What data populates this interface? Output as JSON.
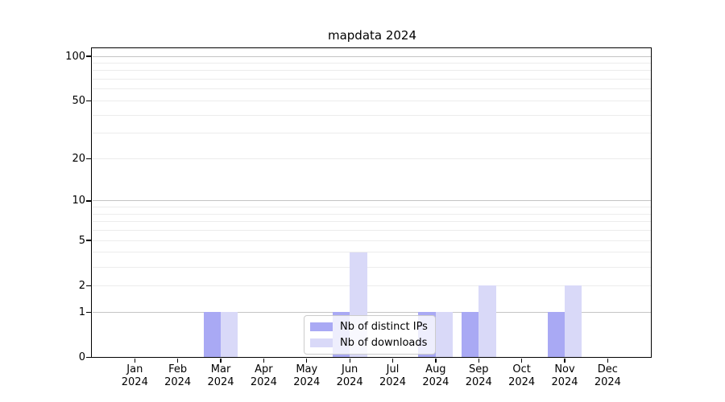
{
  "chart_data": {
    "type": "bar",
    "title": "mapdata 2024",
    "categories": [
      "Jan 2024",
      "Feb 2024",
      "Mar 2024",
      "Apr 2024",
      "May 2024",
      "Jun 2024",
      "Jul 2024",
      "Aug 2024",
      "Sep 2024",
      "Oct 2024",
      "Nov 2024",
      "Dec 2024"
    ],
    "series": [
      {
        "name": "Nb of distinct IPs",
        "color": "#a9a9f4",
        "values": [
          0,
          0,
          1,
          0,
          0,
          1,
          0,
          1,
          1,
          0,
          1,
          0
        ]
      },
      {
        "name": "Nb of downloads",
        "color": "#d9d9f8",
        "values": [
          0,
          0,
          1,
          0,
          0,
          4,
          0,
          1,
          2,
          0,
          2,
          0
        ]
      }
    ],
    "ylabel": "",
    "xlabel": "",
    "ylim": [
      0,
      100
    ],
    "yscale": "log(value+1)",
    "yticks": [
      0,
      1,
      2,
      5,
      10,
      20,
      50,
      100
    ],
    "gridlines_major": [
      1,
      10,
      100
    ],
    "gridlines_minor": [
      2,
      3,
      4,
      5,
      6,
      7,
      8,
      9,
      20,
      30,
      40,
      50,
      60,
      70,
      80,
      90
    ],
    "grid": "on",
    "legend_position": "lower center"
  }
}
